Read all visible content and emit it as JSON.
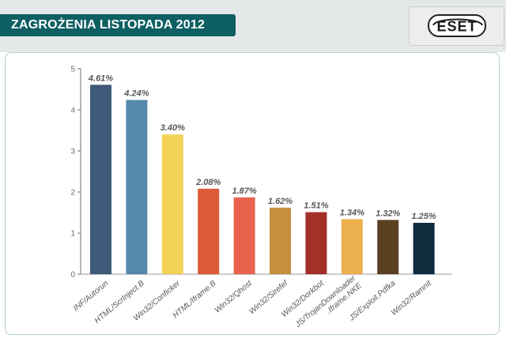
{
  "header": {
    "title": "ZAGROŻENIA LISTOPADA 2012"
  },
  "logo": {
    "text": "ESET",
    "icon": "eset-logo",
    "color": "#1a1a1a"
  },
  "chart_data": {
    "type": "bar",
    "title": "ZAGROŻENIA LISTOPADA 2012",
    "xlabel": "",
    "ylabel": "",
    "ylim": [
      0,
      5
    ],
    "yticks": [
      0,
      1,
      2,
      3,
      4,
      5
    ],
    "grid": false,
    "categories": [
      "INF/Autorun",
      "HTML/ScrInject.B",
      "Win32/Conficker",
      "HTML/Iframe.B",
      "Win32/Qhost",
      "Win32/Sirefef",
      "Win32/Dorkbot",
      "JS/TrojanDownloader .Iframe.NKE",
      "JS/Exploit.Pdfka",
      "Win32/Ramnit"
    ],
    "values": [
      4.61,
      4.24,
      3.4,
      2.08,
      1.87,
      1.62,
      1.51,
      1.34,
      1.32,
      1.25
    ],
    "value_labels": [
      "4.61%",
      "4.24%",
      "3.40%",
      "2.08%",
      "1.87%",
      "1.62%",
      "1.51%",
      "1.34%",
      "1.32%",
      "1.25%"
    ],
    "colors": [
      "#3e5a78",
      "#5489ad",
      "#f2d256",
      "#dd5a37",
      "#e8624d",
      "#c48f3e",
      "#a43029",
      "#edb04f",
      "#5b4022",
      "#0f2c3f"
    ]
  }
}
